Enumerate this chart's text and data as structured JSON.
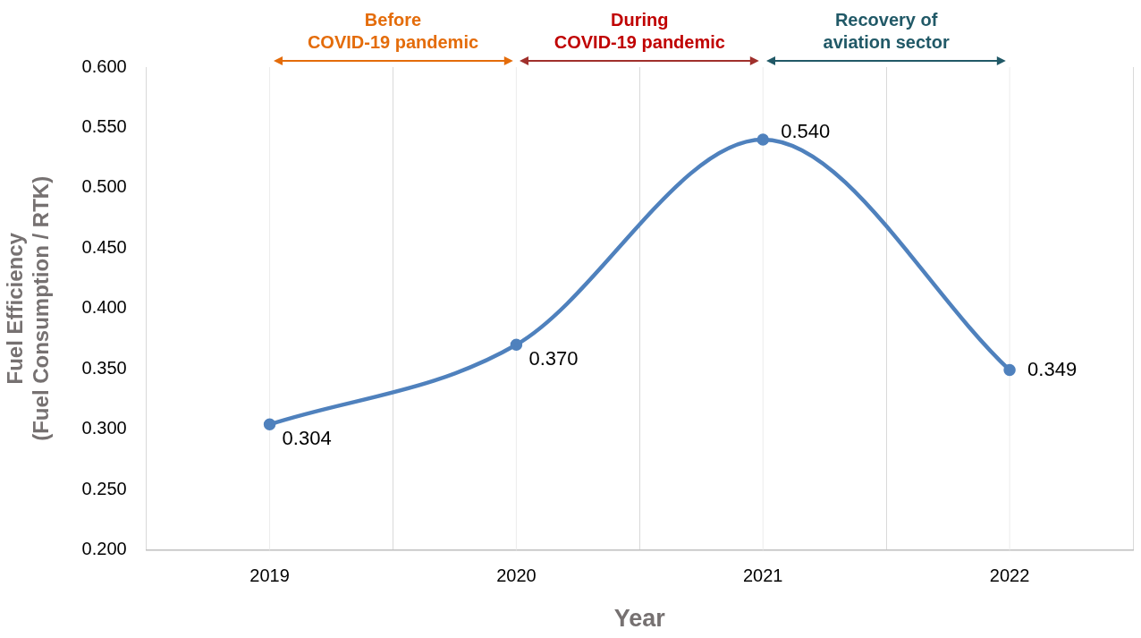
{
  "chart_data": {
    "type": "line",
    "xlabel": "Year",
    "ylabel": "Fuel Efficiency\n(Fuel Consumption / RTK)",
    "categories": [
      "2019",
      "2020",
      "2021",
      "2022"
    ],
    "series": [
      {
        "color": "#4f81bd",
        "values": [
          0.304,
          0.37,
          0.54,
          0.349
        ],
        "value_labels": [
          "0.304",
          "0.370",
          "0.540",
          "0.349"
        ]
      }
    ],
    "ylim": [
      0.2,
      0.6
    ],
    "yticks": [
      {
        "value": 0.2,
        "label": "0.200"
      },
      {
        "value": 0.25,
        "label": "0.250"
      },
      {
        "value": 0.3,
        "label": "0.300"
      },
      {
        "value": 0.35,
        "label": "0.350"
      },
      {
        "value": 0.4,
        "label": "0.400"
      },
      {
        "value": 0.45,
        "label": "0.450"
      },
      {
        "value": 0.5,
        "label": "0.500"
      },
      {
        "value": 0.55,
        "label": "0.550"
      },
      {
        "value": 0.6,
        "label": "0.600"
      }
    ],
    "annotations": [
      "Before\nCOVID-19 pandemic",
      "During\nCOVID-19 pandemic",
      "Recovery of\naviation sector"
    ],
    "grid": "x",
    "marker": "circle",
    "line_style": "solid",
    "legend": false
  }
}
